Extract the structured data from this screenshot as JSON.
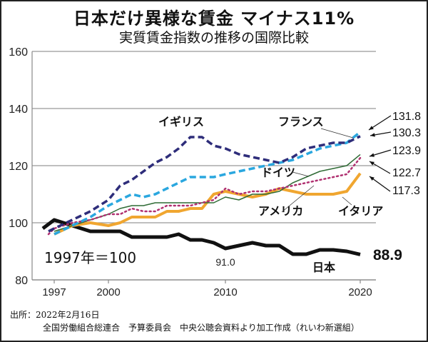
{
  "title": "日本だけ異様な賃金 マイナス11%",
  "subtitle": "実質賃金指数の推移の国際比較",
  "source_line1": "出所：2022年2月16日",
  "source_line2": "全国労働組合総連合　予算委員会　中央公聴会資料より加工作成（れいわ新選組）",
  "chart_data": {
    "type": "line",
    "title": "実質賃金指数の推移の国際比較",
    "xlabel": "",
    "ylabel": "",
    "ylim": [
      80,
      160
    ],
    "yticks": [
      80,
      100,
      120,
      140,
      160
    ],
    "xticks": [
      1997,
      2000,
      2010,
      2020
    ],
    "grid": true,
    "base_note": "1997年＝100",
    "series": [
      {
        "name": "イギリス",
        "color": "#2e2d7a",
        "style": "dashed",
        "x": [
          1996.5,
          1997,
          1998,
          1999,
          2000,
          2001,
          2002,
          2003,
          2004,
          2005,
          2006,
          2007,
          2008,
          2009,
          2010,
          2011,
          2012,
          2013,
          2014,
          2015,
          2016,
          2017,
          2018,
          2019,
          2020
        ],
        "values": [
          97,
          98,
          101,
          104,
          108,
          113,
          115,
          118,
          121,
          123,
          126,
          130,
          130,
          127,
          126,
          124,
          123,
          122,
          121,
          123,
          126,
          127,
          128,
          128,
          130.3
        ],
        "end_label": "130.3"
      },
      {
        "name": "フランス",
        "color": "#2aa7df",
        "style": "dashed",
        "x": [
          1997,
          1998,
          1999,
          2000,
          2001,
          2002,
          2003,
          2004,
          2005,
          2006,
          2007,
          2008,
          2009,
          2010,
          2011,
          2012,
          2013,
          2014,
          2015,
          2016,
          2017,
          2018,
          2019,
          2020
        ],
        "values": [
          96,
          99,
          102,
          106,
          108,
          110,
          109,
          110,
          112,
          114,
          116,
          116,
          116,
          117,
          118,
          119,
          120,
          121,
          122,
          124,
          126,
          127,
          128,
          131.8
        ],
        "end_label": "131.8"
      },
      {
        "name": "ドイツ",
        "color": "#2f6b35",
        "style": "solid-thin",
        "x": [
          1997,
          1998,
          1999,
          2000,
          2001,
          2002,
          2003,
          2004,
          2005,
          2006,
          2007,
          2008,
          2009,
          2010,
          2011,
          2012,
          2013,
          2014,
          2015,
          2016,
          2017,
          2018,
          2019,
          2020
        ],
        "values": [
          97,
          99,
          101,
          103,
          105,
          106,
          106,
          107,
          107,
          107,
          107,
          107,
          107,
          109,
          108,
          110,
          110,
          111,
          114,
          116,
          118,
          119,
          120,
          123.9
        ],
        "end_label": "123.9"
      },
      {
        "name": "アメリカ",
        "color": "#b03070",
        "style": "dotted",
        "x": [
          1996.5,
          1997,
          1998,
          1999,
          2000,
          2001,
          2002,
          2003,
          2004,
          2005,
          2006,
          2007,
          2008,
          2009,
          2010,
          2011,
          2012,
          2013,
          2014,
          2015,
          2016,
          2017,
          2018,
          2019,
          2020
        ],
        "values": [
          96,
          98,
          100,
          101,
          103,
          103,
          105,
          104,
          104,
          106,
          106,
          106,
          107,
          108,
          112,
          110,
          111,
          111,
          112,
          113,
          114,
          115,
          116,
          117,
          122.7
        ],
        "end_label": "122.7"
      },
      {
        "name": "イタリア",
        "color": "#f0a630",
        "style": "solid",
        "x": [
          1997,
          1998,
          1999,
          2000,
          2001,
          2002,
          2003,
          2004,
          2005,
          2006,
          2007,
          2008,
          2009,
          2010,
          2011,
          2012,
          2013,
          2014,
          2015,
          2016,
          2017,
          2018,
          2019,
          2020
        ],
        "values": [
          96,
          99,
          100,
          99,
          100,
          102,
          102,
          102,
          104,
          104,
          105,
          105,
          110,
          111,
          110,
          109,
          110,
          112,
          111,
          110,
          110,
          110,
          111,
          117.3
        ],
        "end_label": "117.3"
      },
      {
        "name": "日本",
        "color": "#111111",
        "style": "solid-thick",
        "x": [
          1996,
          1997,
          1998,
          1999,
          2000,
          2001,
          2002,
          2003,
          2004,
          2005,
          2006,
          2007,
          2008,
          2009,
          2010,
          2011,
          2012,
          2013,
          2014,
          2015,
          2016,
          2017,
          2018,
          2019,
          2020
        ],
        "values": [
          98,
          101,
          99,
          97,
          97,
          97,
          95,
          95,
          95,
          95,
          96,
          94,
          94,
          93,
          91,
          92,
          93,
          92,
          92,
          89,
          89,
          90.5,
          90.5,
          90,
          88.9
        ],
        "end_label": "88.9"
      }
    ],
    "annotations": [
      {
        "text": "91.0",
        "x": 2010,
        "y": 91.0
      },
      {
        "text": "88.9",
        "x": 2020,
        "y": 88.9
      }
    ]
  }
}
